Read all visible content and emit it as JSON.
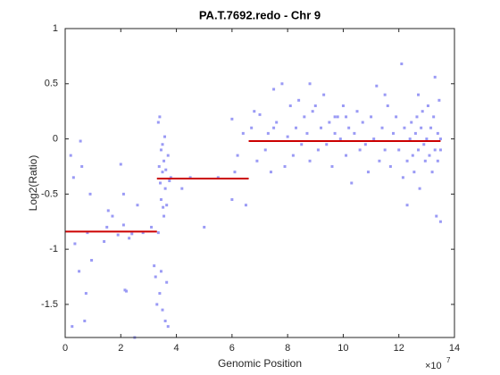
{
  "chart_data": {
    "type": "scatter",
    "title": "PA.T.7692.redo - Chr 9",
    "x_label": "Genomic Position",
    "y_label": "Log2(Ratio)",
    "x_multiplier": {
      "base": "×10",
      "exponent": "7"
    },
    "xlim": [
      0,
      14
    ],
    "xticks": [
      0,
      2,
      4,
      6,
      8,
      10,
      12,
      14
    ],
    "ylim": [
      -1.8,
      1
    ],
    "yticks": [
      -1.5,
      -1,
      -0.5,
      0,
      0.5,
      1
    ],
    "color": "#9a9af5",
    "x": [
      0.2,
      0.3,
      0.25,
      0.35,
      0.5,
      0.55,
      0.6,
      0.7,
      0.75,
      0.8,
      0.9,
      0.95,
      1.4,
      1.5,
      1.55,
      1.7,
      1.9,
      2.0,
      2.1,
      2.1,
      2.15,
      2.2,
      2.3,
      2.4,
      2.5,
      2.6,
      2.8,
      3.1,
      3.2,
      3.25,
      3.3,
      3.35,
      3.4,
      3.38,
      3.42,
      3.45,
      3.45,
      3.5,
      3.5,
      3.52,
      3.55,
      3.55,
      3.58,
      3.6,
      3.6,
      3.62,
      3.65,
      3.65,
      3.7,
      3.7,
      3.75,
      3.4,
      3.5,
      3.45,
      3.35,
      3.8,
      4.2,
      4.5,
      5.0,
      5.5,
      6.0,
      6.1,
      6.0,
      6.2,
      6.5,
      6.4,
      6.7,
      6.8,
      6.9,
      7.0,
      7.2,
      7.3,
      7.4,
      7.5,
      7.6,
      7.8,
      7.9,
      8.0,
      8.1,
      8.2,
      8.3,
      8.4,
      8.5,
      8.6,
      8.7,
      8.8,
      8.9,
      9.0,
      9.1,
      9.2,
      9.3,
      9.4,
      9.5,
      9.6,
      9.7,
      9.8,
      9.9,
      10.0,
      10.1,
      10.2,
      10.3,
      10.4,
      10.5,
      10.6,
      10.7,
      10.8,
      10.9,
      11.0,
      11.1,
      11.2,
      11.3,
      11.4,
      11.5,
      11.6,
      11.7,
      11.8,
      11.9,
      12.0,
      12.1,
      12.15,
      12.2,
      12.3,
      12.4,
      12.45,
      12.5,
      12.55,
      12.6,
      12.65,
      12.7,
      12.75,
      12.8,
      12.85,
      12.9,
      12.95,
      13.0,
      13.05,
      13.1,
      13.15,
      13.2,
      13.25,
      13.3,
      13.3,
      13.35,
      13.4,
      13.4,
      13.45,
      13.5,
      13.5,
      13.5,
      12.3,
      12.7,
      11.5,
      10.1,
      9.7,
      8.8,
      7.5
    ],
    "values": [
      -0.15,
      -0.35,
      -1.7,
      -0.95,
      -1.2,
      -0.02,
      -0.25,
      -1.65,
      -1.4,
      -0.85,
      -0.5,
      -1.1,
      -0.93,
      -0.8,
      -0.65,
      -0.7,
      -0.87,
      -0.23,
      -0.5,
      -0.78,
      -1.37,
      -1.38,
      -0.9,
      -0.86,
      -1.8,
      -0.6,
      -0.85,
      -0.8,
      -1.15,
      -1.25,
      -1.5,
      0.15,
      0.2,
      -0.25,
      -0.4,
      -0.1,
      -0.55,
      -0.05,
      -0.3,
      -0.62,
      -0.7,
      -0.2,
      0.02,
      -0.45,
      -1.65,
      -0.28,
      -0.6,
      -1.3,
      -1.7,
      -0.15,
      -0.38,
      -1.4,
      -1.55,
      -1.2,
      -0.85,
      -0.35,
      -0.45,
      -0.35,
      -0.8,
      -0.35,
      -0.55,
      -0.3,
      0.18,
      -0.15,
      -0.6,
      0.05,
      0.1,
      0.25,
      -0.2,
      0.22,
      -0.1,
      0.05,
      -0.3,
      0.1,
      0.15,
      0.5,
      -0.25,
      0.02,
      0.3,
      -0.15,
      0.1,
      0.35,
      -0.05,
      0.2,
      0.05,
      -0.2,
      0.25,
      0.3,
      -0.1,
      0.1,
      0.4,
      -0.05,
      0.15,
      -0.25,
      0.05,
      0.2,
      0.0,
      0.3,
      -0.15,
      0.1,
      -0.4,
      0.05,
      0.25,
      -0.1,
      0.15,
      -0.05,
      -0.3,
      0.2,
      0.0,
      0.48,
      -0.2,
      0.1,
      -0.1,
      0.3,
      -0.25,
      0.05,
      0.2,
      -0.1,
      0.68,
      -0.35,
      0.1,
      -0.2,
      0.0,
      0.15,
      -0.15,
      -0.3,
      0.05,
      0.2,
      -0.1,
      -0.45,
      0.1,
      0.25,
      -0.05,
      -0.2,
      0.0,
      0.3,
      -0.15,
      0.1,
      -0.3,
      0.2,
      -0.1,
      0.56,
      -0.7,
      0.05,
      -0.2,
      0.35,
      0.0,
      -0.1,
      -0.75,
      -0.6,
      0.4,
      0.4,
      0.2,
      0.2,
      0.5,
      0.45
    ],
    "segments": {
      "color": "#cc0000",
      "x_start": [
        0,
        3.3,
        6.6
      ],
      "x_end": [
        3.3,
        6.6,
        13.5
      ],
      "values": [
        -0.84,
        -0.36,
        -0.02
      ]
    }
  }
}
